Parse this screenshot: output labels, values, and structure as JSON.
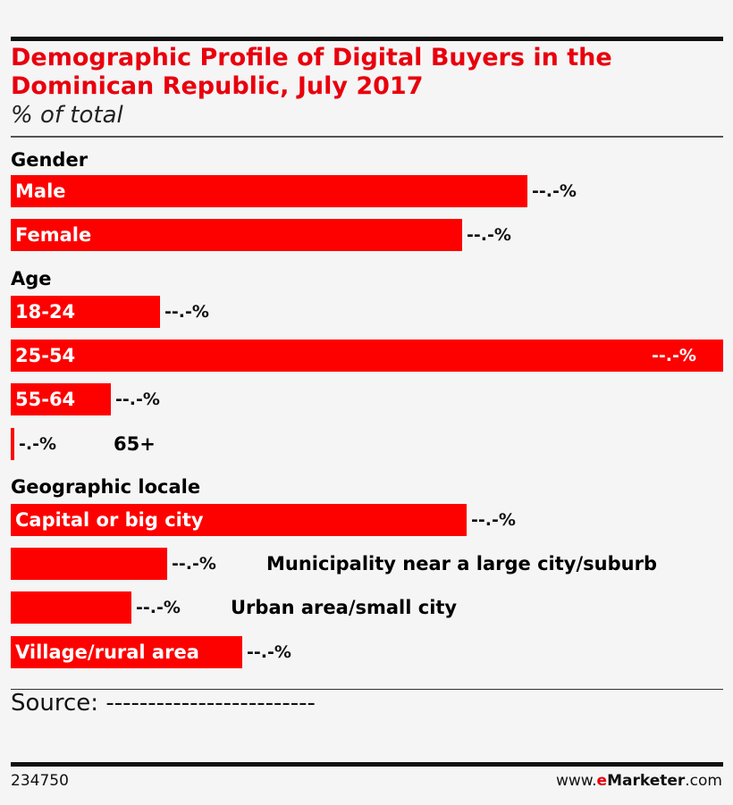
{
  "chart_data": {
    "type": "bar",
    "orientation": "horizontal",
    "title": "Demographic Profile of Digital Buyers in the Dominican Republic, July 2017",
    "subtitle": "% of total",
    "value_label": "--.-%",
    "groups": [
      {
        "name": "Gender",
        "bars": [
          {
            "label": "Male",
            "value": 72.5,
            "value_text": "--.-%"
          },
          {
            "label": "Female",
            "value": 63.4,
            "value_text": "--.-%"
          }
        ]
      },
      {
        "name": "Age",
        "bars": [
          {
            "label": "18-24",
            "value": 21.0,
            "value_text": "--.-%"
          },
          {
            "label": "25-54",
            "value": 100.0,
            "value_text": "--.-%"
          },
          {
            "label": "55-64",
            "value": 14.0,
            "value_text": "--.-%"
          },
          {
            "label": "65+",
            "value": 0.5,
            "value_text": "-.-%"
          }
        ]
      },
      {
        "name": "Geographic locale",
        "bars": [
          {
            "label": "Capital or big city",
            "value": 64.0,
            "value_text": "--.-%"
          },
          {
            "label": "Municipality near a large city/suburb",
            "value": 22.0,
            "value_text": "--.-%"
          },
          {
            "label": "Urban area/small city",
            "value": 17.0,
            "value_text": "--.-%"
          },
          {
            "label": "Village/rural area",
            "value": 32.5,
            "value_text": "--.-%"
          }
        ]
      }
    ],
    "bar_color": "#fd0000",
    "title_color": "#e8000d"
  },
  "source": "Source: -------------------------",
  "footer": {
    "chart_id": "234750",
    "brand_prefix": "www.",
    "brand_e": "e",
    "brand_name": "Marketer",
    "brand_suffix": ".com"
  }
}
